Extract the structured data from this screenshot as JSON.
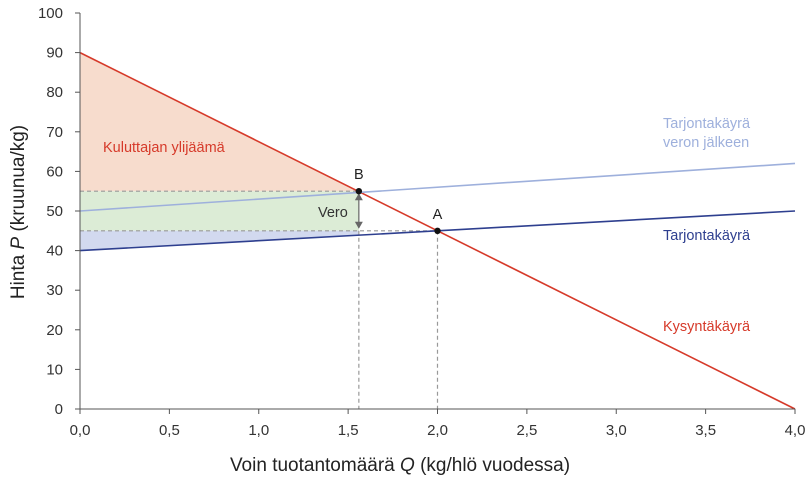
{
  "chart_data": {
    "type": "line",
    "title": "",
    "xlabel_parts": [
      "Voin tuotantomäärä ",
      "Q",
      " (kg/hlö vuodessa)"
    ],
    "ylabel_parts": [
      "Hinta ",
      "P",
      " (kruunua/kg)"
    ],
    "xlim": [
      0,
      4
    ],
    "ylim": [
      0,
      100
    ],
    "x_ticks": [
      0,
      0.5,
      1,
      1.5,
      2,
      2.5,
      3,
      3.5,
      4
    ],
    "x_tick_labels": [
      "0,0",
      "0,5",
      "1,0",
      "1,5",
      "2,0",
      "2,5",
      "3,0",
      "3,5",
      "4,0"
    ],
    "y_ticks": [
      0,
      10,
      20,
      30,
      40,
      50,
      60,
      70,
      80,
      90,
      100
    ],
    "y_tick_labels": [
      "0",
      "10",
      "20",
      "30",
      "40",
      "50",
      "60",
      "70",
      "80",
      "90",
      "100"
    ],
    "grid": false,
    "series": [
      {
        "name": "Kysyntäkäyrä",
        "color": "#d63a2a",
        "x": [
          0,
          4
        ],
        "y": [
          90,
          0
        ]
      },
      {
        "name": "Tarjontakäyrä",
        "color": "#2e3f8f",
        "x": [
          0,
          4
        ],
        "y": [
          40,
          50
        ]
      },
      {
        "name": "Tarjontakäyrä veron jälkeen",
        "color": "#9eb0dc",
        "x": [
          0,
          4
        ],
        "y": [
          50,
          62
        ]
      }
    ],
    "points": [
      {
        "label": "A",
        "x": 2.0,
        "y": 45
      },
      {
        "label": "B",
        "x": 1.56,
        "y": 55
      }
    ],
    "regions": [
      {
        "name": "consumer-surplus",
        "color": "#f7dccd",
        "polygon": [
          [
            0,
            90
          ],
          [
            1.56,
            55
          ],
          [
            0,
            55
          ]
        ]
      },
      {
        "name": "tax-revenue",
        "color": "#dcecd6",
        "polygon": [
          [
            0,
            55
          ],
          [
            1.56,
            55
          ],
          [
            1.56,
            45
          ],
          [
            0,
            45
          ]
        ]
      },
      {
        "name": "producer-surplus",
        "color": "#d2d9ef",
        "polygon": [
          [
            0,
            45
          ],
          [
            1.56,
            45
          ],
          [
            1.56,
            44
          ],
          [
            0,
            40
          ]
        ]
      }
    ],
    "annotations": {
      "consumer_surplus": "Kuluttajan ylijäämä",
      "tax": "Vero",
      "supply_after_tax_line1": "Tarjontakäyrä",
      "supply_after_tax_line2": "veron jälkeen",
      "supply": "Tarjontakäyrä",
      "demand": "Kysyntäkäyrä"
    },
    "colors": {
      "demand": "#d63a2a",
      "supply": "#2e3f8f",
      "supply_after_tax": "#9eb0dc",
      "guide": "#999999",
      "axis": "#555555"
    }
  }
}
